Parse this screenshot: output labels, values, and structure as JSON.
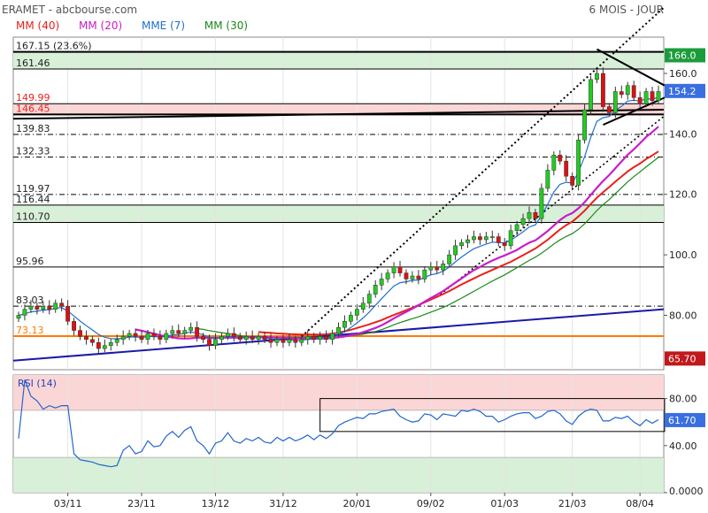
{
  "header": {
    "title": "ERAMET - abcbourse.com",
    "period": "6 MOIS - JOUR",
    "legend": [
      {
        "label": "MM (40)",
        "color": "#e8211c"
      },
      {
        "label": "MM (20)",
        "color": "#c81ec8"
      },
      {
        "label": "MME (7)",
        "color": "#1f6fd0"
      },
      {
        "label": "MM (30)",
        "color": "#1a8a1a"
      }
    ]
  },
  "colors": {
    "up_candle": "#22cc22",
    "down_candle": "#dd1111",
    "zone_green": "#d8efd8",
    "zone_red": "#fbd6d6",
    "ma40": "#e8211c",
    "ma20": "#c81ec8",
    "mme7": "#1f6fd0",
    "ma30": "#1a8a1a",
    "trend_support": "#1a1aa8",
    "level_orange": "#ff7a00",
    "rsi_line": "#2266cc"
  },
  "chart_data": [
    {
      "type": "candlestick",
      "ylim": [
        62,
        172
      ],
      "y_ticks": [
        "160.0",
        "140.0",
        "120.0",
        "100.0",
        "80.00"
      ],
      "x_ticks": [
        "03/11",
        "23/11",
        "13/12",
        "31/12",
        "20/01",
        "09/02",
        "01/03",
        "21/03",
        "08/04"
      ],
      "price_badges": [
        {
          "label": "166.0",
          "value": 166.0,
          "color": "#1c9c3c"
        },
        {
          "label": "154.2",
          "value": 154.2,
          "color": "#3a6fe0"
        },
        {
          "label": "65.70",
          "value": 65.7,
          "color": "#c0181b"
        }
      ],
      "levels": [
        {
          "label": "167.15  (23.6%)",
          "value": 167.15,
          "style": "solid"
        },
        {
          "label": "161.46",
          "value": 161.46,
          "style": "solid"
        },
        {
          "label": "149.99",
          "value": 149.99,
          "style": "solid",
          "label_color": "#e8211c"
        },
        {
          "label": "146.45",
          "value": 146.45,
          "style": "solid",
          "label_color": "#e8211c"
        },
        {
          "label": "139.83",
          "value": 139.83,
          "style": "dashdot"
        },
        {
          "label": "132.33",
          "value": 132.33,
          "style": "dashdot"
        },
        {
          "label": "119.97",
          "value": 119.97,
          "style": "dashdot"
        },
        {
          "label": "116.44",
          "value": 116.44,
          "style": "solid"
        },
        {
          "label": "110.70",
          "value": 110.7,
          "style": "solid"
        },
        {
          "label": "95.96",
          "value": 95.96,
          "style": "solid"
        },
        {
          "label": "83.03",
          "value": 83.03,
          "style": "dashdot"
        },
        {
          "label": "73.13",
          "value": 73.13,
          "style": "orange",
          "label_color": "#ff7a00"
        }
      ],
      "zones": [
        {
          "from": 161.46,
          "to": 167.15,
          "color": "#d8efd8"
        },
        {
          "from": 146.45,
          "to": 149.99,
          "color": "#fbd6d6"
        },
        {
          "from": 110.7,
          "to": 116.44,
          "color": "#d8efd8"
        }
      ],
      "close": [
        80,
        82,
        83,
        82,
        83,
        82,
        84,
        83,
        78,
        75,
        73,
        72,
        71,
        69,
        70,
        71,
        72,
        73,
        74,
        73,
        72,
        74,
        73,
        72,
        74,
        75,
        74,
        75,
        76,
        73,
        72,
        70,
        72,
        73,
        74,
        73,
        72,
        73,
        72,
        73,
        72,
        71,
        72,
        71,
        72,
        71,
        72,
        73,
        72,
        73,
        72,
        74,
        76,
        78,
        80,
        82,
        84,
        87,
        90,
        92,
        94,
        96,
        94,
        92,
        93,
        92,
        95,
        96,
        95,
        97,
        100,
        103,
        104,
        105,
        106,
        105,
        106,
        106,
        104,
        103,
        108,
        110,
        112,
        114,
        112,
        122,
        128,
        133,
        131,
        126,
        123,
        138,
        148,
        158,
        160,
        149,
        147,
        154,
        153,
        156,
        152,
        150,
        154,
        151,
        154
      ],
      "ma40": [
        null,
        null,
        null,
        null,
        null,
        null,
        null,
        null,
        null,
        null,
        null,
        null,
        null,
        null,
        null,
        null,
        null,
        null,
        null,
        null,
        null,
        null,
        null,
        null,
        null,
        null,
        null,
        null,
        null,
        null,
        null,
        null,
        null,
        null,
        null,
        null,
        null,
        null,
        null,
        74.5,
        74.3,
        74.2,
        74.0,
        73.9,
        73.8,
        73.7,
        73.6,
        73.6,
        73.6,
        73.6,
        73.7,
        73.9,
        74.3,
        74.7,
        75.2,
        75.8,
        76.4,
        77.0,
        77.7,
        78.4,
        79.3,
        80.1,
        80.9,
        81.7,
        82.5,
        83.4,
        84.3,
        85.2,
        86.1,
        87.0,
        88.0,
        89.1,
        90.2,
        91.2,
        92.2,
        93.2,
        94.1,
        95.0,
        95.9,
        96.8,
        97.7,
        98.8,
        99.9,
        101.0,
        102.1,
        103.5,
        105.0,
        106.7,
        108.4,
        109.8,
        111.0,
        112.7,
        114.6,
        116.8,
        118.9,
        120.7,
        122.4,
        124.2,
        125.9,
        127.6,
        129.0,
        130.2,
        131.7,
        132.9,
        134.2
      ],
      "ma20": [
        null,
        null,
        null,
        null,
        null,
        null,
        null,
        null,
        null,
        null,
        null,
        null,
        null,
        null,
        null,
        null,
        null,
        null,
        null,
        75.3,
        74.9,
        74.4,
        73.9,
        73.4,
        73.0,
        72.7,
        72.4,
        72.3,
        72.4,
        72.6,
        72.6,
        72.5,
        72.5,
        72.6,
        72.6,
        72.6,
        72.6,
        72.7,
        72.8,
        72.8,
        72.8,
        72.7,
        72.6,
        72.6,
        72.5,
        72.4,
        72.4,
        72.4,
        72.3,
        72.4,
        72.4,
        72.5,
        72.7,
        73.0,
        73.4,
        73.8,
        74.4,
        75.1,
        75.8,
        76.7,
        77.8,
        79.0,
        80.1,
        81.1,
        82.2,
        83.3,
        84.5,
        85.7,
        86.8,
        88.0,
        89.4,
        90.8,
        92.2,
        93.6,
        94.9,
        96.0,
        97.1,
        98.1,
        99.0,
        99.8,
        100.7,
        101.6,
        102.9,
        104.0,
        104.8,
        106.3,
        107.9,
        109.7,
        111.5,
        112.9,
        113.8,
        115.4,
        117.4,
        119.8,
        122.2,
        124.4,
        126.4,
        128.6,
        130.9,
        133.1,
        134.9,
        136.9,
        139.0,
        140.6,
        142.4
      ]
    },
    {
      "type": "line",
      "title": "RSI (14)",
      "ylim": [
        0,
        100
      ],
      "y_ticks": [
        "80.00",
        "40.00",
        "0.0000"
      ],
      "last_value": "61.70",
      "last_value_color": "#3a6fe0",
      "zones": [
        {
          "from": 70,
          "to": 100,
          "color": "#fbd6d6"
        },
        {
          "from": 0,
          "to": 30,
          "color": "#d8efd8"
        }
      ],
      "values": [
        46,
        96,
        82,
        78,
        71,
        74,
        72,
        74,
        74,
        33,
        28,
        27,
        26,
        24,
        23,
        22,
        23,
        36,
        40,
        33,
        35,
        44,
        39,
        40,
        48,
        52,
        47,
        53,
        56,
        44,
        40,
        33,
        42,
        44,
        51,
        44,
        42,
        46,
        44,
        47,
        43,
        42,
        47,
        44,
        47,
        44,
        46,
        49,
        45,
        49,
        46,
        50,
        57,
        60,
        62,
        64,
        63,
        67,
        67,
        69,
        70,
        71,
        65,
        62,
        60,
        61,
        67,
        66,
        62,
        67,
        66,
        65,
        70,
        69,
        71,
        69,
        65,
        65,
        60,
        62,
        65,
        67,
        68,
        68,
        63,
        65,
        69,
        70,
        67,
        61,
        58,
        65,
        69,
        71,
        70,
        61,
        61,
        64,
        63,
        65,
        60,
        57,
        62,
        59,
        62
      ]
    }
  ]
}
